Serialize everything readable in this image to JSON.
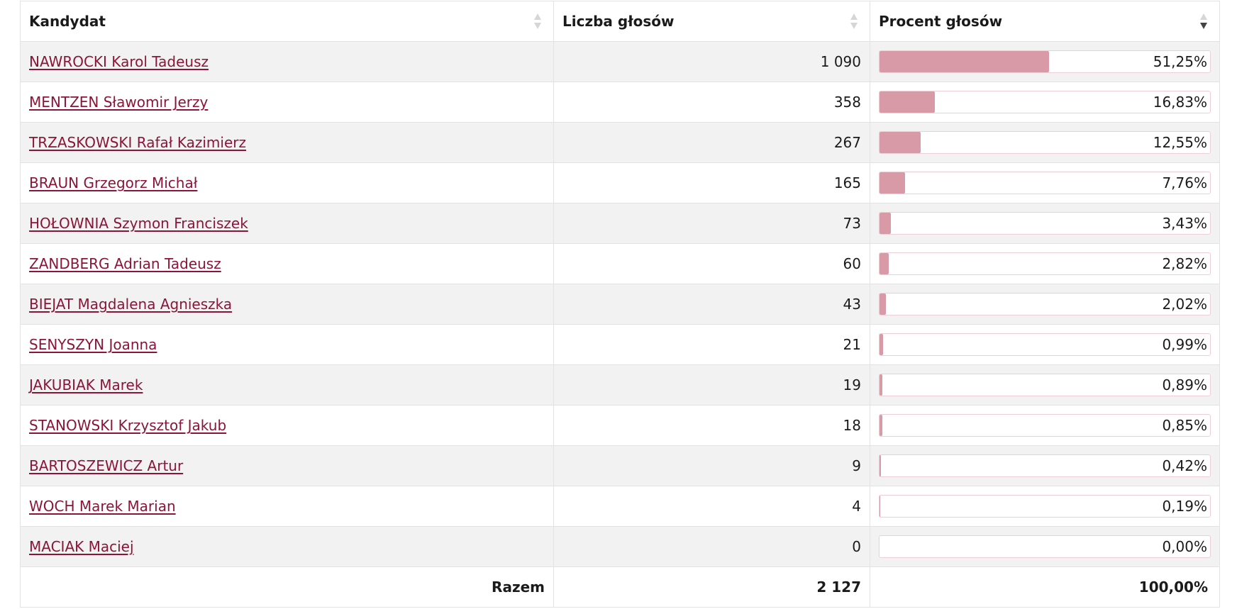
{
  "table": {
    "headers": {
      "candidate": "Kandydat",
      "votes": "Liczba głosów",
      "percent": "Procent głosów"
    },
    "rows": [
      {
        "name": "NAWROCKI Karol Tadeusz",
        "votes": "1 090",
        "percent_label": "51,25%",
        "percent": 51.25
      },
      {
        "name": "MENTZEN Sławomir Jerzy",
        "votes": "358",
        "percent_label": "16,83%",
        "percent": 16.83
      },
      {
        "name": "TRZASKOWSKI Rafał Kazimierz",
        "votes": "267",
        "percent_label": "12,55%",
        "percent": 12.55
      },
      {
        "name": "BRAUN Grzegorz Michał",
        "votes": "165",
        "percent_label": "7,76%",
        "percent": 7.76
      },
      {
        "name": "HOŁOWNIA Szymon Franciszek",
        "votes": "73",
        "percent_label": "3,43%",
        "percent": 3.43
      },
      {
        "name": "ZANDBERG Adrian Tadeusz",
        "votes": "60",
        "percent_label": "2,82%",
        "percent": 2.82
      },
      {
        "name": "BIEJAT Magdalena Agnieszka",
        "votes": "43",
        "percent_label": "2,02%",
        "percent": 2.02
      },
      {
        "name": "SENYSZYN Joanna",
        "votes": "21",
        "percent_label": "0,99%",
        "percent": 0.99
      },
      {
        "name": "JAKUBIAK Marek",
        "votes": "19",
        "percent_label": "0,89%",
        "percent": 0.89
      },
      {
        "name": "STANOWSKI Krzysztof Jakub",
        "votes": "18",
        "percent_label": "0,85%",
        "percent": 0.85
      },
      {
        "name": "BARTOSZEWICZ Artur",
        "votes": "9",
        "percent_label": "0,42%",
        "percent": 0.42
      },
      {
        "name": "WOCH Marek Marian",
        "votes": "4",
        "percent_label": "0,19%",
        "percent": 0.19
      },
      {
        "name": "MACIAK Maciej",
        "votes": "0",
        "percent_label": "0,00%",
        "percent": 0.0
      }
    ],
    "footer": {
      "label": "Razem",
      "votes": "2 127",
      "percent": "100,00%"
    },
    "sort": {
      "active_column": "percent",
      "direction": "descending"
    }
  },
  "colors": {
    "link": "#8a1538",
    "bar_fill": "#d99aa8",
    "bar_border": "#eccfd6",
    "row_alt": "#f2f2f2"
  }
}
